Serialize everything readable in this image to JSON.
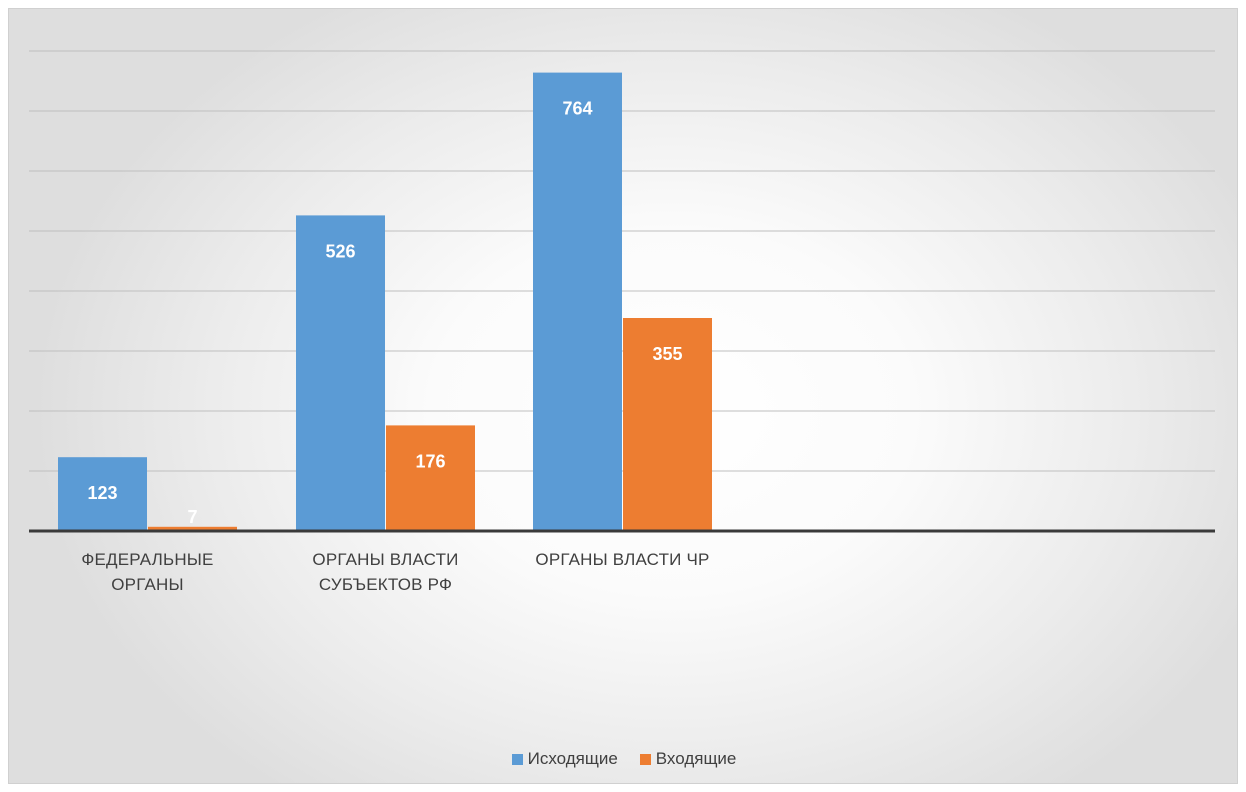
{
  "chart_data": {
    "type": "bar",
    "categories": [
      "ФЕДЕРАЛЬНЫЕ ОРГАНЫ",
      "ОРГАНЫ ВЛАСТИ СУБЪЕКТОВ РФ",
      "ОРГАНЫ ВЛАСТИ ЧР"
    ],
    "series": [
      {
        "name": "Исходящие",
        "values": [
          123,
          526,
          764
        ],
        "color": "#5B9BD5"
      },
      {
        "name": "Входящие",
        "values": [
          7,
          176,
          355
        ],
        "color": "#ED7D31"
      }
    ],
    "ylim": [
      0,
      900
    ],
    "grid": true,
    "data_labels": true,
    "legend": "bottom",
    "title": "",
    "xlabel": "",
    "ylabel": ""
  }
}
